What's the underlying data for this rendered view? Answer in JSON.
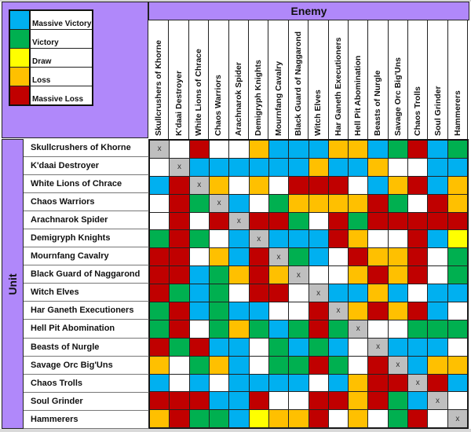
{
  "legend": [
    {
      "code": "B",
      "label": "Massive Victory",
      "color": "#00b0f0"
    },
    {
      "code": "G",
      "label": "Victory",
      "color": "#00b050"
    },
    {
      "code": "Y",
      "label": "Draw",
      "color": "#ffff00"
    },
    {
      "code": "O",
      "label": "Loss",
      "color": "#ffc000"
    },
    {
      "code": "R",
      "label": "Massive Loss",
      "color": "#c00000"
    }
  ],
  "header": {
    "enemy_label": "Enemy",
    "unit_label": "Unit"
  },
  "self_marker": "x",
  "colors": {
    "header_purple": "#b088fa",
    "self_cell": "#bfbfbf",
    "blank_cell": "#ffffff"
  },
  "columns": [
    "Skullcrushers of Khorne",
    "K'daai Destroyer",
    "White Lions of Chrace",
    "Chaos Warriors",
    "Arachnarok Spider",
    "Demigryph Knights",
    "Mournfang Cavalry",
    "Black Guard of Naggarond",
    "Witch Elves",
    "Har Ganeth Executioners",
    "Hell Pit Abomination",
    "Beasts of Nurgle",
    "Savage Orc Big'Uns",
    "Chaos Trolls",
    "Soul Grinder",
    "Hammerers"
  ],
  "rows": [
    {
      "unit": "Skullcrushers of Khorne",
      "results": [
        "X",
        "W",
        "R",
        "W",
        "W",
        "O",
        "B",
        "B",
        "B",
        "O",
        "O",
        "B",
        "G",
        "R",
        "B",
        "G"
      ]
    },
    {
      "unit": "K'daai Destroyer",
      "results": [
        "W",
        "X",
        "B",
        "B",
        "B",
        "B",
        "B",
        "B",
        "O",
        "B",
        "B",
        "O",
        "W",
        "W",
        "B",
        "B"
      ]
    },
    {
      "unit": "White Lions of Chrace",
      "results": [
        "B",
        "R",
        "X",
        "O",
        "W",
        "O",
        "W",
        "R",
        "R",
        "R",
        "W",
        "B",
        "O",
        "R",
        "B",
        "O"
      ]
    },
    {
      "unit": "Chaos Warriors",
      "results": [
        "W",
        "R",
        "G",
        "X",
        "B",
        "W",
        "G",
        "O",
        "O",
        "O",
        "O",
        "R",
        "G",
        "W",
        "R",
        "O"
      ]
    },
    {
      "unit": "Arachnarok Spider",
      "results": [
        "W",
        "R",
        "W",
        "R",
        "X",
        "R",
        "R",
        "G",
        "W",
        "R",
        "G",
        "R",
        "R",
        "R",
        "R",
        "R"
      ]
    },
    {
      "unit": "Demigryph Knights",
      "results": [
        "G",
        "R",
        "G",
        "W",
        "B",
        "X",
        "B",
        "B",
        "B",
        "R",
        "O",
        "W",
        "W",
        "R",
        "B",
        "Y"
      ]
    },
    {
      "unit": "Mournfang Cavalry",
      "results": [
        "R",
        "R",
        "W",
        "O",
        "B",
        "R",
        "X",
        "G",
        "B",
        "W",
        "R",
        "O",
        "O",
        "R",
        "W",
        "G"
      ]
    },
    {
      "unit": "Black Guard of Naggarond",
      "results": [
        "R",
        "R",
        "B",
        "G",
        "O",
        "R",
        "O",
        "X",
        "W",
        "W",
        "O",
        "R",
        "O",
        "R",
        "W",
        "G"
      ]
    },
    {
      "unit": "Witch Elves",
      "results": [
        "R",
        "G",
        "B",
        "G",
        "W",
        "R",
        "R",
        "W",
        "X",
        "B",
        "B",
        "O",
        "B",
        "W",
        "B",
        "B"
      ]
    },
    {
      "unit": "Har Ganeth Executioners",
      "results": [
        "G",
        "R",
        "B",
        "G",
        "B",
        "B",
        "W",
        "W",
        "R",
        "X",
        "O",
        "R",
        "O",
        "R",
        "B",
        "W"
      ]
    },
    {
      "unit": "Hell Pit Abomination",
      "results": [
        "G",
        "R",
        "W",
        "G",
        "O",
        "G",
        "B",
        "G",
        "R",
        "G",
        "X",
        "W",
        "W",
        "G",
        "G",
        "G"
      ]
    },
    {
      "unit": "Beasts of Nurgle",
      "results": [
        "R",
        "G",
        "R",
        "B",
        "B",
        "W",
        "G",
        "B",
        "G",
        "B",
        "W",
        "X",
        "B",
        "B",
        "B",
        "W"
      ]
    },
    {
      "unit": "Savage Orc Big'Uns",
      "results": [
        "O",
        "W",
        "G",
        "O",
        "B",
        "W",
        "G",
        "G",
        "R",
        "G",
        "W",
        "R",
        "X",
        "B",
        "O",
        "O"
      ]
    },
    {
      "unit": "Chaos Trolls",
      "results": [
        "B",
        "W",
        "B",
        "W",
        "B",
        "B",
        "B",
        "B",
        "W",
        "B",
        "O",
        "R",
        "R",
        "X",
        "R",
        "B"
      ]
    },
    {
      "unit": "Soul Grinder",
      "results": [
        "R",
        "R",
        "R",
        "B",
        "B",
        "R",
        "W",
        "W",
        "R",
        "R",
        "O",
        "R",
        "G",
        "B",
        "X",
        "W"
      ]
    },
    {
      "unit": "Hammerers",
      "results": [
        "O",
        "R",
        "G",
        "G",
        "B",
        "Y",
        "O",
        "O",
        "R",
        "W",
        "O",
        "W",
        "G",
        "R",
        "W",
        "X"
      ]
    }
  ]
}
